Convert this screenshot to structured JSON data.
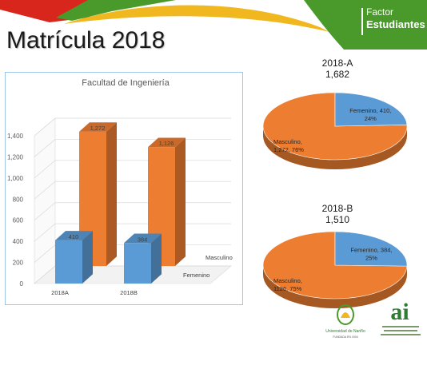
{
  "page": {
    "title": "Matrícula 2018",
    "brand_line1": "Factor",
    "brand_line2": "Estudiantes"
  },
  "colors": {
    "female": "#5b9bd5",
    "male": "#ed7d31",
    "banner_green": "#4a9a2b",
    "banner_yellow": "#f0b81e",
    "banner_red": "#d9261c"
  },
  "chart_data": [
    {
      "type": "bar",
      "title": "Facultad de Ingeniería",
      "categories": [
        "2018A",
        "2018B"
      ],
      "series": [
        {
          "name": "Femenino",
          "values": [
            410,
            384
          ]
        },
        {
          "name": "Masculino",
          "values": [
            1272,
            1126
          ]
        }
      ],
      "data_labels": {
        "Femenino": [
          "410",
          "384"
        ],
        "Masculino": [
          "1,272",
          "1,126"
        ]
      },
      "yticks": [
        0,
        200,
        400,
        600,
        800,
        1000,
        1200,
        1400
      ],
      "ytick_labels": [
        "0",
        "200",
        "400",
        "600",
        "800",
        "1,000",
        "1,200",
        "1,400"
      ],
      "ylim": [
        0,
        1400
      ],
      "grid": true,
      "legend": "none"
    },
    {
      "type": "pie",
      "title": "2018-A",
      "subtitle": "1,682",
      "slices": [
        {
          "name": "Femenino",
          "value": 410,
          "label_l1": "Femenino, 410,",
          "label_l2": "24%"
        },
        {
          "name": "Masculino",
          "value": 1272,
          "label_l1": "Masculino,",
          "label_l2": "1,272, 76%"
        }
      ]
    },
    {
      "type": "pie",
      "title": "2018-B",
      "subtitle": "1,510",
      "slices": [
        {
          "name": "Femenino",
          "value": 384,
          "label_l1": "Femenino, 384,",
          "label_l2": "25%"
        },
        {
          "name": "Masculino",
          "value": 1126,
          "label_l1": "Masculino,",
          "label_l2": "1126, 75%"
        }
      ]
    }
  ],
  "logos": {
    "udenar_line1": "Universidad de Nariño",
    "udenar_line2": "FUNDADA EN 1904",
    "ai_mark": "ai"
  }
}
